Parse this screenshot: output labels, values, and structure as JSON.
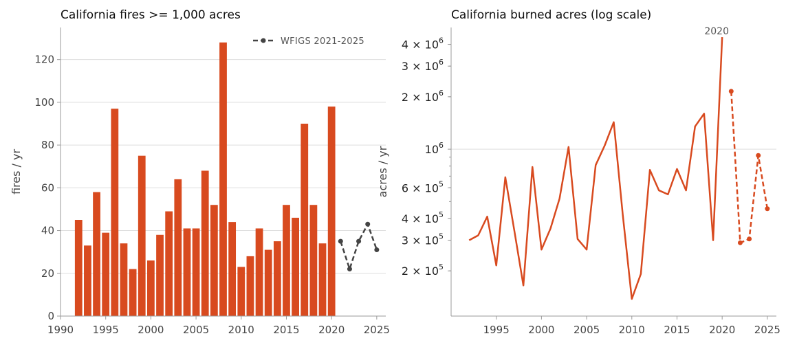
{
  "colors": {
    "bar": "#d84a1f",
    "recent_line": "#444444",
    "acres_line": "#d84a1f",
    "grid": "#dddddd",
    "axis": "#999999"
  },
  "chart_data": [
    {
      "type": "bar",
      "title": "California fires >= 1,000 acres",
      "ylabel": "fires / yr",
      "xlim": [
        1990,
        2026
      ],
      "ylim": [
        0,
        135
      ],
      "xticks": [
        1990,
        1995,
        2000,
        2005,
        2010,
        2015,
        2020,
        2025
      ],
      "yticks": [
        0,
        20,
        40,
        60,
        80,
        100,
        120
      ],
      "grid": "horizontal",
      "legend_position": "top-right",
      "categories": [
        1992,
        1993,
        1994,
        1995,
        1996,
        1997,
        1998,
        1999,
        2000,
        2001,
        2002,
        2003,
        2004,
        2005,
        2006,
        2007,
        2008,
        2009,
        2010,
        2011,
        2012,
        2013,
        2014,
        2015,
        2016,
        2017,
        2018,
        2019,
        2020
      ],
      "values": [
        45,
        33,
        58,
        39,
        97,
        34,
        22,
        75,
        26,
        38,
        49,
        64,
        41,
        41,
        68,
        52,
        128,
        44,
        23,
        28,
        41,
        31,
        35,
        52,
        46,
        90,
        52,
        34,
        98
      ],
      "series": [
        {
          "name": "WFIGS 2021-2025",
          "style": "dashed-with-markers",
          "x": [
            2021,
            2022,
            2023,
            2024,
            2025
          ],
          "values": [
            35,
            22,
            35,
            43,
            31
          ]
        }
      ]
    },
    {
      "type": "line",
      "title": "California burned acres (log scale)",
      "ylabel": "acres / yr",
      "yscale": "log",
      "xlim": [
        1990,
        2026
      ],
      "ylim": [
        110000,
        5000000
      ],
      "xticks": [
        1995,
        2000,
        2005,
        2010,
        2015,
        2020,
        2025
      ],
      "yticks": [
        {
          "value": 200000,
          "mantissa": "2",
          "exp": "5"
        },
        {
          "value": 300000,
          "mantissa": "3",
          "exp": "5"
        },
        {
          "value": 400000,
          "mantissa": "4",
          "exp": "5"
        },
        {
          "value": 600000,
          "mantissa": "6",
          "exp": "5"
        },
        {
          "value": 1000000,
          "mantissa": "",
          "exp": "6"
        },
        {
          "value": 2000000,
          "mantissa": "2",
          "exp": "6"
        },
        {
          "value": 3000000,
          "mantissa": "3",
          "exp": "6"
        },
        {
          "value": 4000000,
          "mantissa": "4",
          "exp": "6"
        }
      ],
      "grid": "major-horizontal",
      "annotation": {
        "text": "2020",
        "x": 2020
      },
      "series": [
        {
          "style": "solid",
          "x": [
            1992,
            1993,
            1994,
            1995,
            1996,
            1997,
            1998,
            1999,
            2000,
            2001,
            2002,
            2003,
            2004,
            2005,
            2006,
            2007,
            2008,
            2009,
            2010,
            2011,
            2012,
            2013,
            2014,
            2015,
            2016,
            2017,
            2018,
            2019,
            2020
          ],
          "values": [
            300000,
            320000,
            410000,
            215000,
            690000,
            340000,
            165000,
            790000,
            265000,
            350000,
            520000,
            1030000,
            305000,
            265000,
            810000,
            1050000,
            1430000,
            420000,
            138000,
            192000,
            760000,
            580000,
            550000,
            770000,
            580000,
            1350000,
            1600000,
            300000,
            4400000
          ]
        },
        {
          "style": "dashed-with-markers",
          "x": [
            2021,
            2022,
            2023,
            2024,
            2025
          ],
          "values": [
            2150000,
            290000,
            305000,
            920000,
            455000
          ]
        }
      ]
    }
  ]
}
